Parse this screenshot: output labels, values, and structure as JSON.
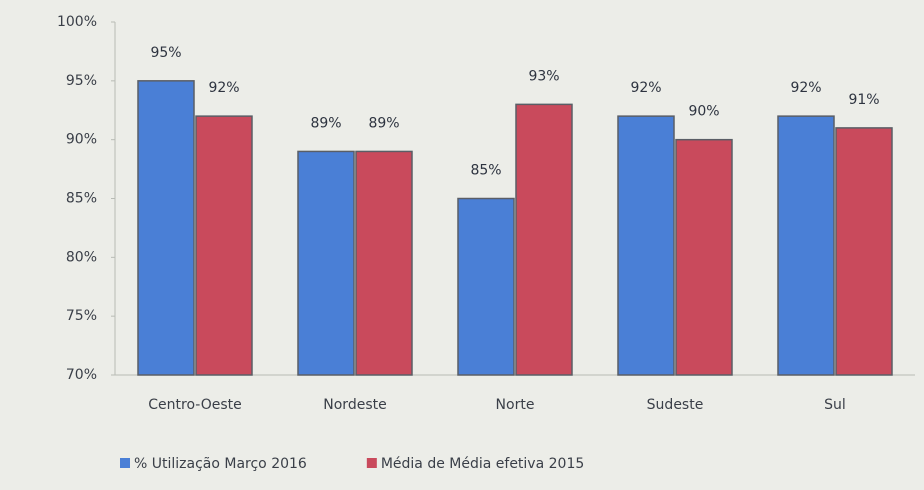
{
  "chart_data": {
    "type": "bar",
    "categories": [
      "Centro-Oeste",
      "Nordeste",
      "Norte",
      "Sudeste",
      "Sul"
    ],
    "series": [
      {
        "name": "% Utilização Março 2016",
        "color": "#4a7fd6",
        "values": [
          95,
          89,
          85,
          92,
          92
        ],
        "value_labels": [
          "95%",
          "89%",
          "85%",
          "92%",
          "92%"
        ]
      },
      {
        "name": "Média de Média efetiva 2015",
        "color": "#c94a5c",
        "values": [
          92,
          89,
          93,
          90,
          91
        ],
        "value_labels": [
          "92%",
          "89%",
          "93%",
          "90%",
          "91%"
        ]
      }
    ],
    "ylim": [
      70,
      100
    ],
    "yticks": [
      {
        "value": 70,
        "label": "70%"
      },
      {
        "value": 75,
        "label": "75%"
      },
      {
        "value": 80,
        "label": "80%"
      },
      {
        "value": 85,
        "label": "85%"
      },
      {
        "value": 90,
        "label": "90%"
      },
      {
        "value": 95,
        "label": "95%"
      },
      {
        "value": 100,
        "label": "100%"
      }
    ],
    "grid": false,
    "legend": "bottom"
  }
}
